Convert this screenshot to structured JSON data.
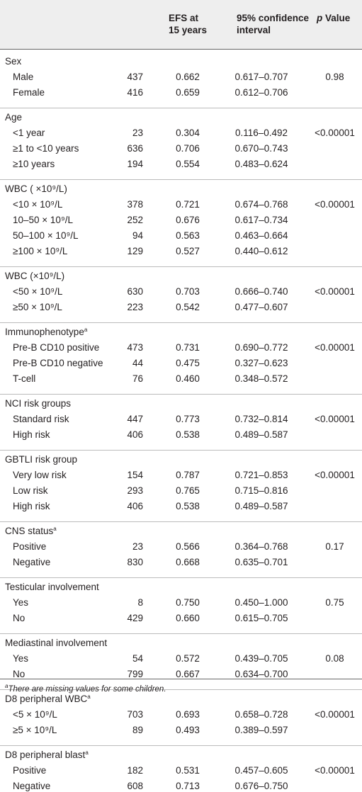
{
  "header": {
    "col_efs": "EFS at\n15 years",
    "col_ci": "95% confidence\ninterval",
    "col_p_italic": "p",
    "col_p_rest": " Value"
  },
  "groups": [
    {
      "title": "Sex",
      "sup": "",
      "rows": [
        {
          "label": "Male",
          "n": "437",
          "efs": "0.662",
          "ci": "0.617–0.707",
          "p": "0.98"
        },
        {
          "label": "Female",
          "n": "416",
          "efs": "0.659",
          "ci": "0.612–0.706",
          "p": ""
        }
      ]
    },
    {
      "title": "Age",
      "sup": "",
      "rows": [
        {
          "label": "<1 year",
          "n": "23",
          "efs": "0.304",
          "ci": "0.116–0.492",
          "p": "<0.00001"
        },
        {
          "label": "≥1 to <10 years",
          "n": "636",
          "efs": "0.706",
          "ci": "0.670–0.743",
          "p": ""
        },
        {
          "label": "≥10 years",
          "n": "194",
          "efs": "0.554",
          "ci": "0.483–0.624",
          "p": ""
        }
      ]
    },
    {
      "title": "WBC ( ×10⁹/L)",
      "sup": "",
      "rows": [
        {
          "label": "<10 × 10⁹/L",
          "n": "378",
          "efs": "0.721",
          "ci": "0.674–0.768",
          "p": "<0.00001"
        },
        {
          "label": "10–50 × 10⁹/L",
          "n": "252",
          "efs": "0.676",
          "ci": "0.617–0.734",
          "p": ""
        },
        {
          "label": "50–100 × 10⁹/L",
          "n": "94",
          "efs": "0.563",
          "ci": "0.463–0.664",
          "p": ""
        },
        {
          "label": "≥100 × 10⁹/L",
          "n": "129",
          "efs": "0.527",
          "ci": "0.440–0.612",
          "p": ""
        }
      ]
    },
    {
      "title": "WBC (×10⁹/L)",
      "sup": "",
      "rows": [
        {
          "label": "<50 × 10⁹/L",
          "n": "630",
          "efs": "0.703",
          "ci": "0.666–0.740",
          "p": "<0.00001"
        },
        {
          "label": "≥50 × 10⁹/L",
          "n": "223",
          "efs": "0.542",
          "ci": "0.477–0.607",
          "p": ""
        }
      ]
    },
    {
      "title": "Immunophenotype",
      "sup": "a",
      "rows": [
        {
          "label": "Pre-B CD10 positive",
          "n": "473",
          "efs": "0.731",
          "ci": "0.690–0.772",
          "p": "<0.00001"
        },
        {
          "label": "Pre-B CD10 negative",
          "n": "44",
          "efs": "0.475",
          "ci": "0.327–0.623",
          "p": ""
        },
        {
          "label": "T-cell",
          "n": "76",
          "efs": "0.460",
          "ci": "0.348–0.572",
          "p": ""
        }
      ]
    },
    {
      "title": "NCI risk groups",
      "sup": "",
      "rows": [
        {
          "label": "Standard risk",
          "n": "447",
          "efs": "0.773",
          "ci": "0.732–0.814",
          "p": "<0.00001"
        },
        {
          "label": "High risk",
          "n": "406",
          "efs": "0.538",
          "ci": "0.489–0.587",
          "p": ""
        }
      ]
    },
    {
      "title": "GBTLI risk group",
      "sup": "",
      "rows": [
        {
          "label": "Very low risk",
          "n": "154",
          "efs": "0.787",
          "ci": "0.721–0.853",
          "p": "<0.00001"
        },
        {
          "label": "Low risk",
          "n": "293",
          "efs": "0.765",
          "ci": "0.715–0.816",
          "p": ""
        },
        {
          "label": "High risk",
          "n": "406",
          "efs": "0.538",
          "ci": "0.489–0.587",
          "p": ""
        }
      ]
    },
    {
      "title": "CNS status",
      "sup": "a",
      "rows": [
        {
          "label": "Positive",
          "n": "23",
          "efs": "0.566",
          "ci": "0.364–0.768",
          "p": "0.17"
        },
        {
          "label": "Negative",
          "n": "830",
          "efs": "0.668",
          "ci": "0.635–0.701",
          "p": ""
        }
      ]
    },
    {
      "title": "Testicular involvement",
      "sup": "",
      "rows": [
        {
          "label": "Yes",
          "n": "8",
          "efs": "0.750",
          "ci": "0.450–1.000",
          "p": "0.75"
        },
        {
          "label": "No",
          "n": "429",
          "efs": "0.660",
          "ci": "0.615–0.705",
          "p": ""
        }
      ]
    },
    {
      "title": "Mediastinal involvement",
      "sup": "",
      "rows": [
        {
          "label": "Yes",
          "n": "54",
          "efs": "0.572",
          "ci": "0.439–0.705",
          "p": "0.08"
        },
        {
          "label": "No",
          "n": "799",
          "efs": "0.667",
          "ci": "0.634–0.700",
          "p": ""
        }
      ]
    },
    {
      "title": "D8 peripheral WBC",
      "sup": "a",
      "rows": [
        {
          "label": "<5 × 10⁹/L",
          "n": "703",
          "efs": "0.693",
          "ci": "0.658–0.728",
          "p": "<0.00001"
        },
        {
          "label": "≥5 × 10⁹/L",
          "n": "89",
          "efs": "0.493",
          "ci": "0.389–0.597",
          "p": ""
        }
      ]
    },
    {
      "title": "D8 peripheral blast",
      "sup": "a",
      "rows": [
        {
          "label": "Positive",
          "n": "182",
          "efs": "0.531",
          "ci": "0.457–0.605",
          "p": "<0.00001"
        },
        {
          "label": "Negative",
          "n": "608",
          "efs": "0.713",
          "ci": "0.676–0.750",
          "p": ""
        }
      ]
    }
  ],
  "footnote": {
    "sup": "a",
    "text": "There are missing values for some children."
  }
}
